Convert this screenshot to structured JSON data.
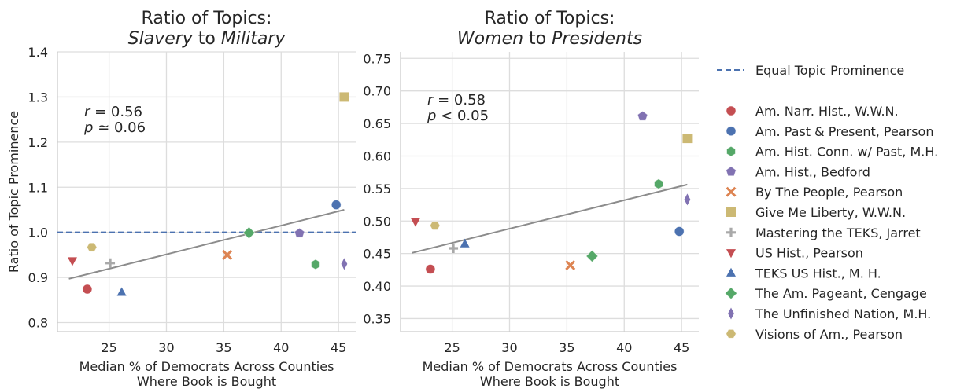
{
  "colors": {
    "grid": "#dddddd",
    "spine": "#cccccc",
    "fit_line": "#8c8c8c",
    "equal_line": "#4c72b0"
  },
  "legend": {
    "reference_label": "Equal Topic Prominence",
    "reference_style": "dashed",
    "books": [
      {
        "name": "Am. Narr. Hist., W.W.N.",
        "color": "#c44e52",
        "marker": "circle"
      },
      {
        "name": "Am. Past & Present, Pearson",
        "color": "#4c72b0",
        "marker": "circle-dark"
      },
      {
        "name": "Am. Hist. Conn. w/ Past, M.H.",
        "color": "#55a868",
        "marker": "hexagon"
      },
      {
        "name": "Am. Hist., Bedford",
        "color": "#8172b2",
        "marker": "pentagon"
      },
      {
        "name": "By The People, Pearson",
        "color": "#dd8452",
        "marker": "x"
      },
      {
        "name": "Give Me Liberty, W.W.N.",
        "color": "#ccb974",
        "marker": "square"
      },
      {
        "name": "Mastering the TEKS, Jarret",
        "color": "#a9a9a9",
        "marker": "plus"
      },
      {
        "name": "US Hist., Pearson",
        "color": "#c44e52",
        "marker": "triangle-down"
      },
      {
        "name": "TEKS US Hist., M. H.",
        "color": "#4c72b0",
        "marker": "triangle-up"
      },
      {
        "name": "The Am. Pageant, Cengage",
        "color": "#55a868",
        "marker": "diamond"
      },
      {
        "name": "The Unfinished Nation, M.H.",
        "color": "#8172b2",
        "marker": "thin-diamond"
      },
      {
        "name": "Visions of Am., Pearson",
        "color": "#ccb974",
        "marker": "hexagon-flat"
      }
    ]
  },
  "chart_data": [
    {
      "type": "scatter",
      "title_line1": "Ratio of Topics:",
      "title_line2_parts": [
        {
          "text": "Slavery",
          "italic": true
        },
        {
          "text": " to ",
          "italic": false
        },
        {
          "text": "Military",
          "italic": true
        }
      ],
      "xlabel_line1": "Median % of Democrats Across Counties",
      "xlabel_line2": "Where Book is Bought",
      "ylabel": "Ratio of Topic Prominence",
      "xlim": [
        20.5,
        46.5
      ],
      "ylim": [
        0.78,
        1.4
      ],
      "xticks": [
        25,
        30,
        35,
        40,
        45
      ],
      "yticks": [
        0.8,
        0.9,
        1.0,
        1.1,
        1.2,
        1.3,
        1.4
      ],
      "ytick_labels": [
        "0.8",
        "0.9",
        "1.0",
        "1.1",
        "1.2",
        "1.3",
        "1.4"
      ],
      "grid": true,
      "reference_y": 1.0,
      "annotation": {
        "r_label": "r",
        "r_value": " = 0.56",
        "p_label": "p",
        "p_value": " ≃  0.06"
      },
      "fit_line": {
        "x": [
          21.5,
          45.5
        ],
        "y": [
          0.897,
          1.05
        ]
      },
      "points": [
        {
          "book": 0,
          "x": 23.1,
          "y": 0.874
        },
        {
          "book": 1,
          "x": 44.8,
          "y": 1.061
        },
        {
          "book": 2,
          "x": 43.0,
          "y": 0.929
        },
        {
          "book": 3,
          "x": 41.6,
          "y": 0.998
        },
        {
          "book": 4,
          "x": 35.3,
          "y": 0.95
        },
        {
          "book": 5,
          "x": 45.5,
          "y": 1.3
        },
        {
          "book": 6,
          "x": 25.1,
          "y": 0.932
        },
        {
          "book": 7,
          "x": 21.8,
          "y": 0.937
        },
        {
          "book": 8,
          "x": 26.1,
          "y": 0.867
        },
        {
          "book": 9,
          "x": 37.2,
          "y": 0.999
        },
        {
          "book": 10,
          "x": 45.5,
          "y": 0.93
        },
        {
          "book": 11,
          "x": 23.5,
          "y": 0.967
        }
      ]
    },
    {
      "type": "scatter",
      "title_line1": "Ratio of Topics:",
      "title_line2_parts": [
        {
          "text": "Women",
          "italic": true
        },
        {
          "text": " to ",
          "italic": false
        },
        {
          "text": "Presidents",
          "italic": true
        }
      ],
      "xlabel_line1": "Median % of Democrats Across Counties",
      "xlabel_line2": "Where Book is Bought",
      "ylabel": "",
      "xlim": [
        20.5,
        46.5
      ],
      "ylim": [
        0.33,
        0.76
      ],
      "xticks": [
        25,
        30,
        35,
        40,
        45
      ],
      "yticks": [
        0.35,
        0.4,
        0.45,
        0.5,
        0.55,
        0.6,
        0.65,
        0.7,
        0.75
      ],
      "ytick_labels": [
        "0.35",
        "0.40",
        "0.45",
        "0.50",
        "0.55",
        "0.60",
        "0.65",
        "0.70",
        "0.75"
      ],
      "grid": true,
      "annotation": {
        "r_label": "r",
        "r_value": " = 0.58",
        "p_label": "p",
        "p_value": " < 0.05"
      },
      "fit_line": {
        "x": [
          21.5,
          45.5
        ],
        "y": [
          0.451,
          0.556
        ]
      },
      "points": [
        {
          "book": 0,
          "x": 23.1,
          "y": 0.426
        },
        {
          "book": 1,
          "x": 44.8,
          "y": 0.484
        },
        {
          "book": 2,
          "x": 43.0,
          "y": 0.557
        },
        {
          "book": 3,
          "x": 41.6,
          "y": 0.661
        },
        {
          "book": 4,
          "x": 35.3,
          "y": 0.432
        },
        {
          "book": 5,
          "x": 45.5,
          "y": 0.627
        },
        {
          "book": 6,
          "x": 25.1,
          "y": 0.458
        },
        {
          "book": 7,
          "x": 21.8,
          "y": 0.499
        },
        {
          "book": 8,
          "x": 26.1,
          "y": 0.465
        },
        {
          "book": 9,
          "x": 37.2,
          "y": 0.446
        },
        {
          "book": 10,
          "x": 45.5,
          "y": 0.533
        },
        {
          "book": 11,
          "x": 23.5,
          "y": 0.493
        }
      ]
    }
  ]
}
